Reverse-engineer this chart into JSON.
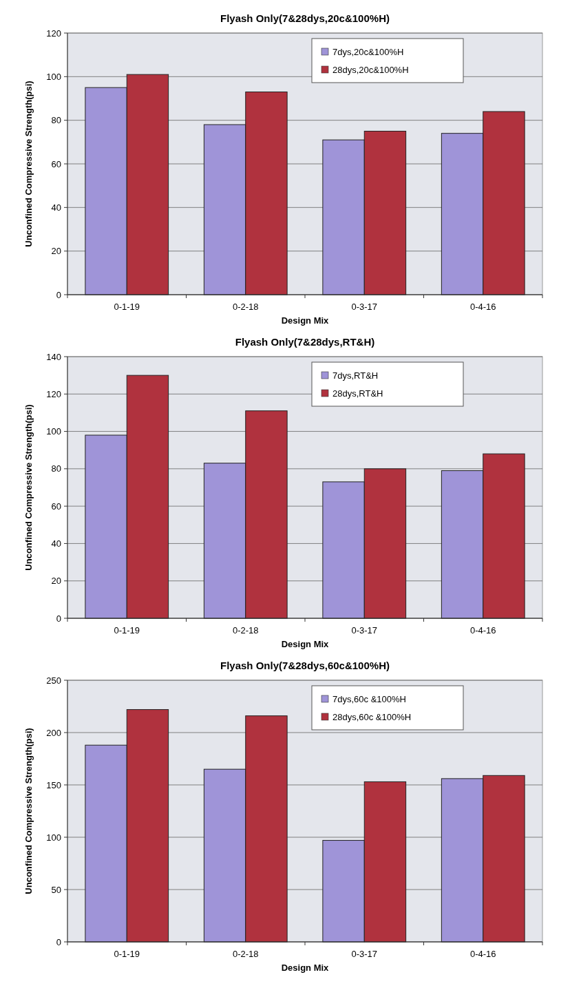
{
  "chart_data": [
    {
      "type": "bar",
      "title": "Flyash Only(7&28dys,20c&100%H)",
      "xlabel": "Design Mix",
      "ylabel": "Unconfined Compressive Strength(psi)",
      "categories": [
        "0-1-19",
        "0-2-18",
        "0-3-17",
        "0-4-16"
      ],
      "series": [
        {
          "name": "7dys,20c&100%H",
          "color": "#9f94d8",
          "values": [
            95,
            78,
            71,
            74
          ]
        },
        {
          "name": "28dys,20c&100%H",
          "color": "#b0323e",
          "values": [
            101,
            93,
            75,
            84
          ]
        }
      ],
      "ylim": [
        0,
        120
      ],
      "yticks": [
        0,
        20,
        40,
        60,
        80,
        100,
        120
      ],
      "grid": "y",
      "legend": "top"
    },
    {
      "type": "bar",
      "title": "Flyash Only(7&28dys,RT&H)",
      "xlabel": "Design Mix",
      "ylabel": "Unconfined Compressive Strength(psi)",
      "categories": [
        "0-1-19",
        "0-2-18",
        "0-3-17",
        "0-4-16"
      ],
      "series": [
        {
          "name": "7dys,RT&H",
          "color": "#9f94d8",
          "values": [
            98,
            83,
            73,
            79
          ]
        },
        {
          "name": "28dys,RT&H",
          "color": "#b0323e",
          "values": [
            130,
            111,
            80,
            88
          ]
        }
      ],
      "ylim": [
        0,
        140
      ],
      "yticks": [
        0,
        20,
        40,
        60,
        80,
        100,
        120,
        140
      ],
      "grid": "y",
      "legend": "top"
    },
    {
      "type": "bar",
      "title": "Flyash Only(7&28dys,60c&100%H)",
      "xlabel": "Design Mix",
      "ylabel": "Unconfined Compressive Strength(psi)",
      "categories": [
        "0-1-19",
        "0-2-18",
        "0-3-17",
        "0-4-16"
      ],
      "series": [
        {
          "name": "7dys,60c &100%H",
          "color": "#9f94d8",
          "values": [
            188,
            165,
            97,
            156
          ]
        },
        {
          "name": "28dys,60c &100%H",
          "color": "#b0323e",
          "values": [
            222,
            216,
            153,
            159
          ]
        }
      ],
      "ylim": [
        0,
        250
      ],
      "yticks": [
        0,
        50,
        100,
        150,
        200,
        250
      ],
      "grid": "y",
      "legend": "top"
    }
  ]
}
